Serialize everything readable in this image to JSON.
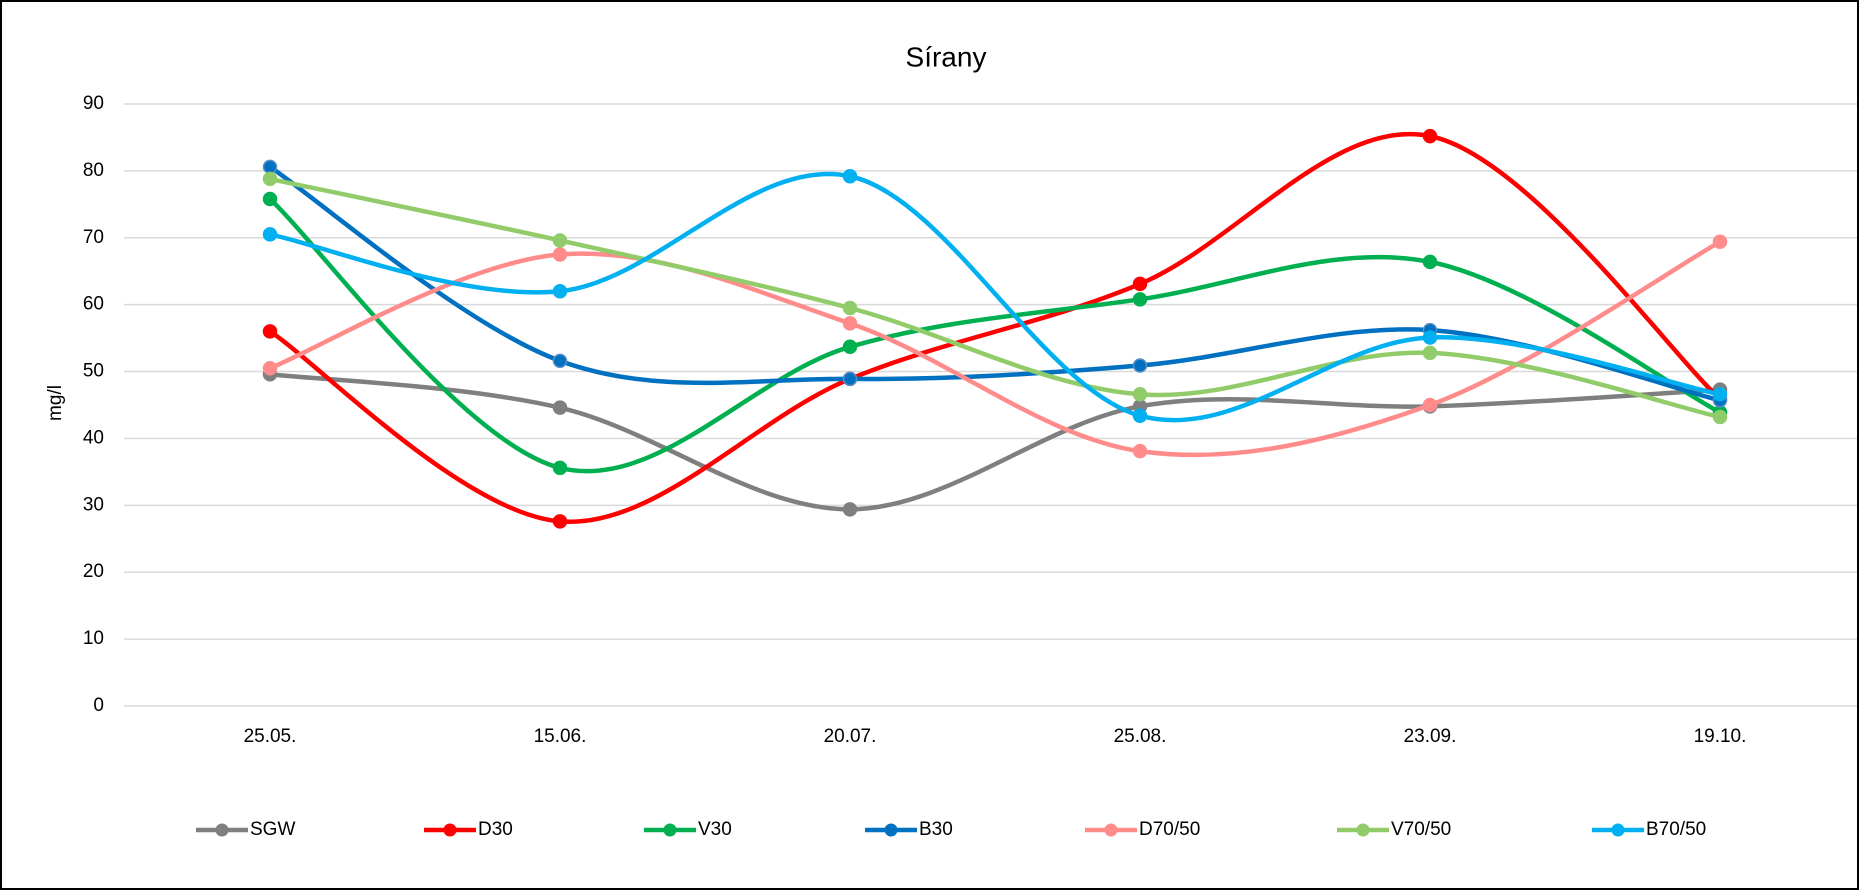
{
  "chart_data": {
    "type": "line",
    "title": "Sírany",
    "y_label": "mg/l",
    "categories": [
      "25.05.",
      "15.06.",
      "20.07.",
      "25.08.",
      "23.09.",
      "19.10."
    ],
    "series": [
      {
        "name": "SGW",
        "color": "#7f7f7f",
        "values": [
          49.6,
          44.6,
          29.4,
          44.8,
          44.8,
          47.3
        ]
      },
      {
        "name": "D30",
        "color": "#ff0000",
        "values": [
          56.0,
          27.6,
          48.9,
          63.1,
          85.2,
          45.9
        ]
      },
      {
        "name": "V30",
        "color": "#00b050",
        "values": [
          75.8,
          35.6,
          53.7,
          60.8,
          66.4,
          43.9
        ]
      },
      {
        "name": "B30",
        "color": "#0070c0",
        "values": [
          80.6,
          51.6,
          48.9,
          50.9,
          56.2,
          45.7
        ]
      },
      {
        "name": "D70/50",
        "color": "#ff8b8b",
        "values": [
          50.5,
          67.5,
          57.2,
          38.1,
          45.0,
          69.4
        ]
      },
      {
        "name": "V70/50",
        "color": "#92cc6a",
        "values": [
          78.8,
          69.6,
          59.5,
          46.6,
          52.8,
          43.2
        ]
      },
      {
        "name": "B70/50",
        "color": "#00b0f0",
        "values": [
          70.5,
          62.0,
          79.2,
          43.4,
          55.1,
          46.6
        ]
      }
    ],
    "ylim": [
      0,
      90
    ],
    "yticks": [
      0,
      10,
      20,
      30,
      40,
      50,
      60,
      70,
      80,
      90
    ],
    "grid": true,
    "smooth": true,
    "legend": "bottom"
  }
}
